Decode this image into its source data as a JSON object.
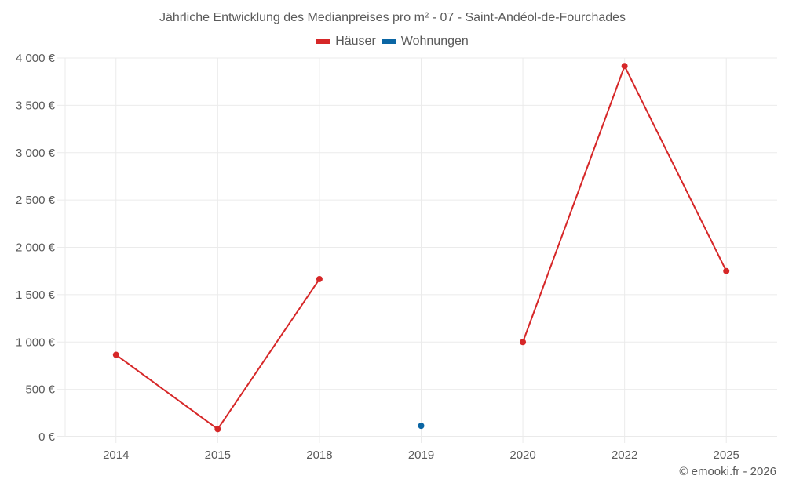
{
  "title": "Jährliche Entwicklung des Medianpreises pro m² - 07 - Saint-Andéol-de-Fourchades",
  "legend": [
    {
      "label": "Häuser",
      "color": "#d62728"
    },
    {
      "label": "Wohnungen",
      "color": "#0b66a4"
    }
  ],
  "credit": "© emooki.fr - 2026",
  "y_ticks": [
    "0 €",
    "500 €",
    "1 000 €",
    "1 500 €",
    "2 000 €",
    "2 500 €",
    "3 000 €",
    "3 500 €",
    "4 000 €"
  ],
  "x_ticks": [
    "2014",
    "2015",
    "2018",
    "2019",
    "2020",
    "2022",
    "2025"
  ],
  "chart_data": {
    "type": "line",
    "title": "Jährliche Entwicklung des Medianpreises pro m² - 07 - Saint-Andéol-de-Fourchades",
    "xlabel": "",
    "ylabel": "",
    "categories": [
      "2014",
      "2015",
      "2018",
      "2019",
      "2020",
      "2022",
      "2025"
    ],
    "series": [
      {
        "name": "Häuser",
        "color": "#d62728",
        "values": [
          865,
          80,
          1665,
          null,
          1000,
          3915,
          1750
        ]
      },
      {
        "name": "Wohnungen",
        "color": "#0b66a4",
        "values": [
          null,
          null,
          null,
          115,
          null,
          null,
          null
        ]
      }
    ],
    "ylim": [
      0,
      4000
    ],
    "y_ticks": [
      0,
      500,
      1000,
      1500,
      2000,
      2500,
      3000,
      3500,
      4000
    ],
    "y_unit": "€",
    "grid": true,
    "legend_position": "top"
  }
}
